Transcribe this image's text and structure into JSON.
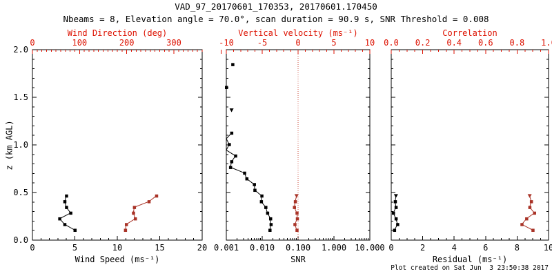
{
  "title": "VAD_97_20170601_170353, 20170601.170450",
  "subtitle": "Nbeams = 8, Elevation angle = 70.0°, scan duration = 90.9 s, SNR Threshold = 0.008",
  "footer": "Plot created on Sat Jun  3 23:50:38 2017",
  "colors": {
    "black": "#000000",
    "axis_red": "#dd1100",
    "data_red": "#a93327",
    "refline_red": "#cc5544",
    "background": "#ffffff"
  },
  "y_axis": {
    "label": "z (km AGL)",
    "min": 0,
    "max": 2,
    "major": 0.5,
    "minor": 0.1,
    "tick_labels": [
      "0.0",
      "0.5",
      "1.0",
      "1.5",
      "2.0"
    ]
  },
  "chart_data": [
    {
      "id": "wind",
      "type": "line",
      "bottom_axis": {
        "label": "Wind Speed (ms⁻¹)",
        "scale": "linear",
        "min": 0,
        "max": 20,
        "major": 5,
        "minor": 1,
        "tick_labels": [
          "0",
          "5",
          "10",
          "15",
          "20"
        ],
        "color": "black"
      },
      "top_axis": {
        "label": "Wind Direction (deg)",
        "scale": "linear",
        "min": 0,
        "max": 360,
        "major": 100,
        "minor": 10,
        "tick_labels": [
          "0",
          "100",
          "200",
          "300"
        ],
        "color": "red"
      },
      "series": [
        {
          "name": "wind-speed",
          "axis": "bottom",
          "color": "black",
          "line": true,
          "points": [
            [
              5.0,
              0.105
            ],
            [
              3.8,
              0.165
            ],
            [
              3.2,
              0.225
            ],
            [
              4.5,
              0.285
            ],
            [
              4.0,
              0.345
            ],
            [
              3.8,
              0.405
            ],
            [
              4.0,
              0.465
            ]
          ]
        },
        {
          "name": "wind-direction",
          "axis": "top",
          "color": "red",
          "line": true,
          "points": [
            [
              197,
              0.105
            ],
            [
              199,
              0.165
            ],
            [
              218,
              0.225
            ],
            [
              214,
              0.285
            ],
            [
              216,
              0.345
            ],
            [
              247,
              0.405
            ],
            [
              263,
              0.465
            ]
          ]
        }
      ]
    },
    {
      "id": "snr",
      "type": "line",
      "bottom_axis": {
        "label": "SNR",
        "scale": "log",
        "min": 0.001,
        "max": 10,
        "tick_labels": [
          "0.001",
          "0.010",
          "0.100",
          "1.000",
          "10.000"
        ],
        "color": "black"
      },
      "top_axis": {
        "label": "Vertical velocity (ms⁻¹)",
        "scale": "linear",
        "min": -10,
        "max": 10,
        "major": 5,
        "minor": 1,
        "tick_labels": [
          "-10",
          "-5",
          "0",
          "5",
          "10"
        ],
        "color": "red"
      },
      "reference_line": {
        "axis": "top",
        "value": 0,
        "style": "dotted",
        "color": "red"
      },
      "series": [
        {
          "name": "snr-profile",
          "axis": "bottom",
          "color": "black",
          "line": true,
          "points": [
            [
              0.0163,
              0.105
            ],
            [
              0.0175,
              0.165
            ],
            [
              0.017,
              0.225
            ],
            [
              0.014,
              0.285
            ],
            [
              0.0125,
              0.345
            ],
            [
              0.0094,
              0.405
            ],
            [
              0.0097,
              0.465
            ],
            [
              0.0062,
              0.525
            ],
            [
              0.006,
              0.585
            ],
            [
              0.0037,
              0.645
            ],
            [
              0.0032,
              0.705
            ],
            [
              0.0013,
              0.765
            ],
            [
              0.0014,
              0.825
            ],
            [
              0.0018,
              0.885
            ],
            [
              0.001,
              0.945,
              0
            ],
            [
              0.0012,
              1.005
            ],
            [
              0.001,
              1.065,
              0
            ],
            [
              0.0014,
              1.125
            ]
          ]
        },
        {
          "name": "snr-isolated",
          "axis": "bottom",
          "color": "black",
          "line": false,
          "points": [
            [
              0.0014,
              1.365,
              2
            ],
            [
              0.001,
              1.605
            ],
            [
              0.0015,
              1.845
            ]
          ]
        },
        {
          "name": "vertical-velocity",
          "axis": "top",
          "color": "red",
          "line": true,
          "points": [
            [
              -0.17,
              0.105
            ],
            [
              -0.46,
              0.165
            ],
            [
              -0.12,
              0.225
            ],
            [
              -0.17,
              0.285
            ],
            [
              -0.53,
              0.345
            ],
            [
              -0.4,
              0.405
            ],
            [
              -0.21,
              0.465,
              2
            ]
          ]
        }
      ]
    },
    {
      "id": "residual",
      "type": "line",
      "bottom_axis": {
        "label": "Residual (ms⁻¹)",
        "scale": "linear",
        "min": 0,
        "max": 10,
        "major": 2,
        "minor": 0.5,
        "tick_labels": [
          "0",
          "2",
          "4",
          "6",
          "8",
          "10"
        ],
        "color": "black"
      },
      "top_axis": {
        "label": "Correlation",
        "scale": "linear",
        "min": 0,
        "max": 1,
        "major": 0.2,
        "minor": 0.05,
        "tick_labels": [
          "0.0",
          "0.2",
          "0.4",
          "0.6",
          "0.8",
          "1.0"
        ],
        "color": "red"
      },
      "series": [
        {
          "name": "residual",
          "axis": "bottom",
          "color": "black",
          "line": true,
          "points": [
            [
              0.2,
              0.105
            ],
            [
              0.4,
              0.165
            ],
            [
              0.3,
              0.225
            ],
            [
              0.13,
              0.285
            ],
            [
              0.3,
              0.345
            ],
            [
              0.25,
              0.405
            ],
            [
              0.3,
              0.465,
              2
            ]
          ]
        },
        {
          "name": "correlation",
          "axis": "top",
          "color": "red",
          "line": true,
          "points": [
            [
              0.9,
              0.105
            ],
            [
              0.83,
              0.165
            ],
            [
              0.86,
              0.225
            ],
            [
              0.91,
              0.285
            ],
            [
              0.88,
              0.345
            ],
            [
              0.89,
              0.405
            ],
            [
              0.88,
              0.465,
              2
            ]
          ]
        }
      ]
    }
  ]
}
